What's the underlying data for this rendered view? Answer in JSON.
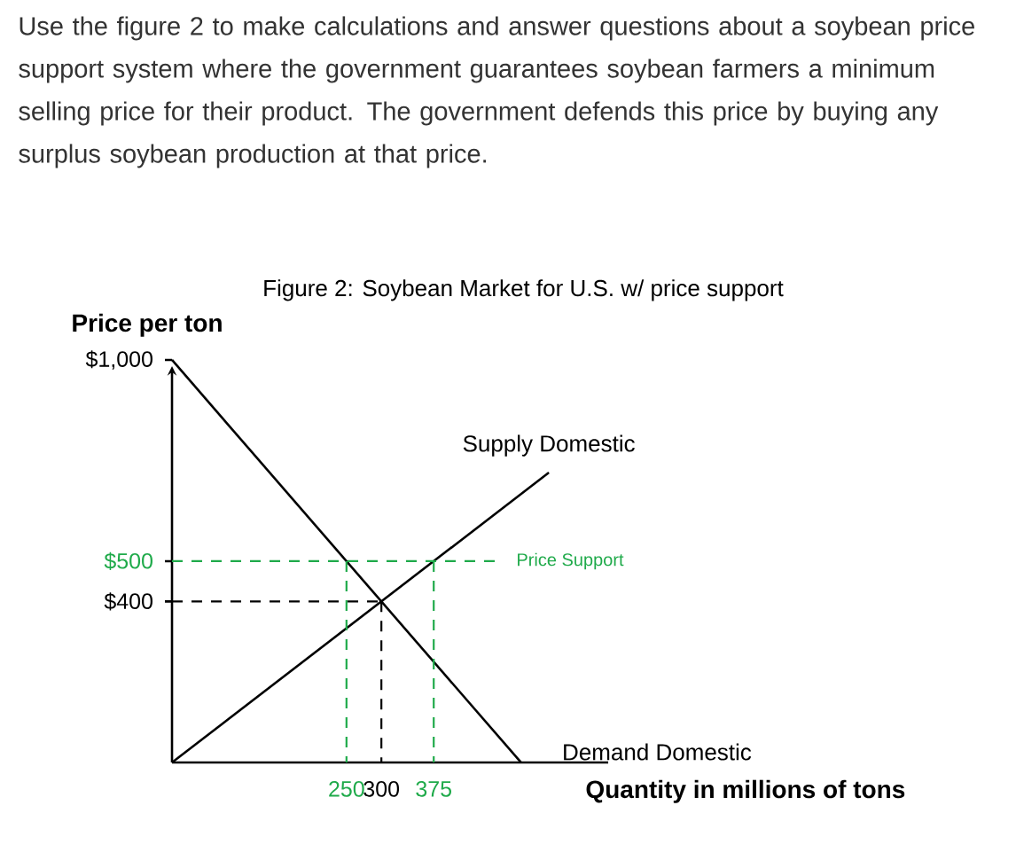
{
  "chart_data": {
    "type": "line",
    "title": "Figure 2: Soybean Market for U.S. w/ price support",
    "annotations": [
      "Use the figure 2 to make calculations and answer questions about a soybean price support system where the government guarantees soybean farmers a minimum selling price for their product. The government defends this price by buying any surplus soybean production at that price."
    ],
    "xlabel": "Quantity in millions of tons",
    "ylabel": "Price per ton",
    "xlim": [
      0,
      625
    ],
    "ylim": [
      0,
      1000
    ],
    "xticks": [
      250,
      300,
      375
    ],
    "yticks": [
      {
        "value": 400,
        "label": "$400"
      },
      {
        "value": 500,
        "label": "$500"
      },
      {
        "value": 1000,
        "label": "$1,000"
      }
    ],
    "series": [
      {
        "name": "Demand Domestic",
        "color": "#000000",
        "x": [
          0,
          500
        ],
        "values": [
          1000,
          0
        ],
        "line_style": "solid"
      },
      {
        "name": "Supply Domestic",
        "color": "#000000",
        "x": [
          0,
          540
        ],
        "values": [
          0,
          720
        ],
        "line_style": "solid"
      },
      {
        "name": "Price Support",
        "color": "#1faa4a",
        "x": [
          0,
          470
        ],
        "values": [
          500,
          500
        ],
        "line_style": "dashed"
      },
      {
        "color": "#1faa4a",
        "x": [
          250,
          250
        ],
        "values": [
          500,
          0
        ],
        "line_style": "dashed"
      },
      {
        "color": "#1faa4a",
        "x": [
          375,
          375
        ],
        "values": [
          500,
          0
        ],
        "line_style": "dashed"
      },
      {
        "color": "#000000",
        "x": [
          0,
          300
        ],
        "values": [
          400,
          400
        ],
        "line_style": "dashed"
      },
      {
        "color": "#000000",
        "x": [
          300,
          300
        ],
        "values": [
          400,
          0
        ],
        "line_style": "dashed"
      }
    ]
  }
}
